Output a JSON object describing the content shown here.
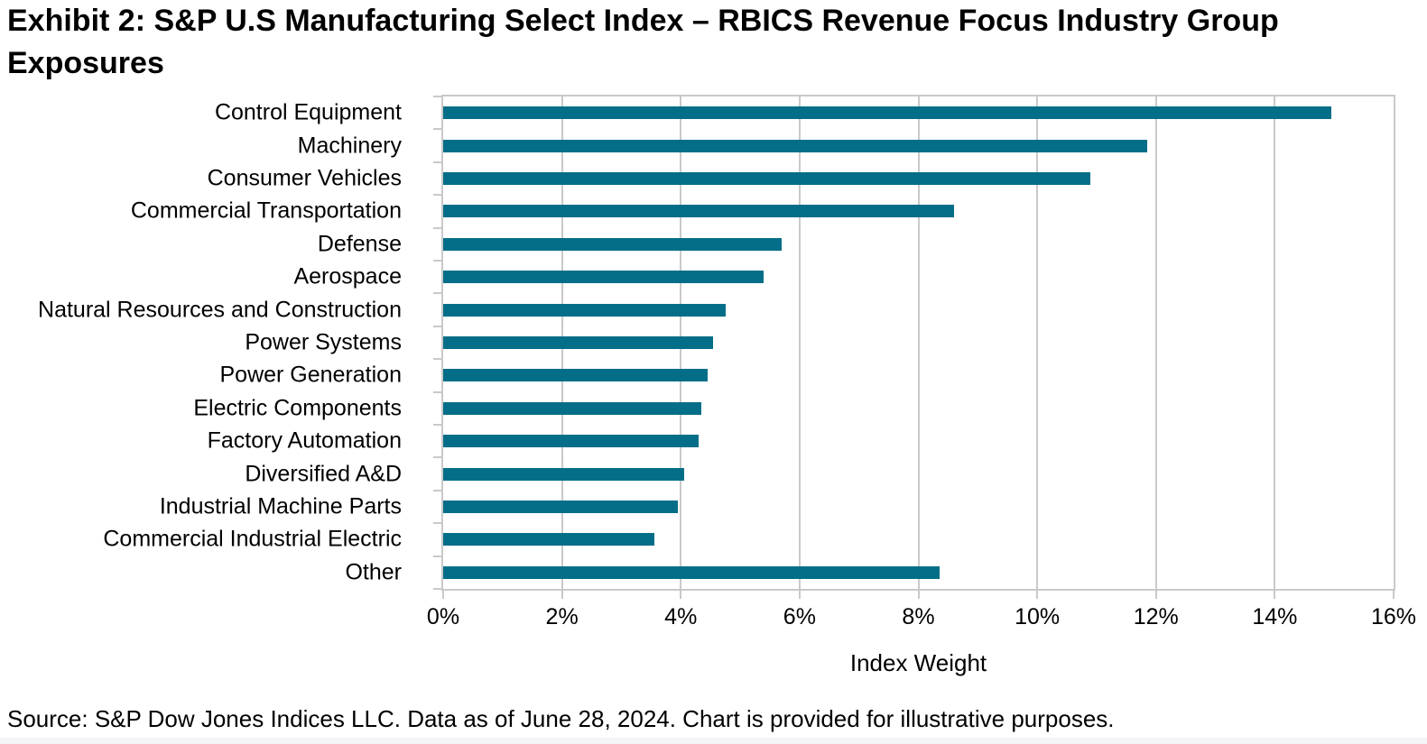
{
  "title": "Exhibit 2: S&P U.S Manufacturing Select Index – RBICS Revenue Focus Industry Group Exposures",
  "source_note": "Source: S&P Dow Jones Indices LLC. Data as of June 28, 2024. Chart is provided for illustrative purposes.",
  "colors": {
    "bar": "#046E88",
    "grid": "#c9c9c9",
    "text": "#000000",
    "background": "#ffffff"
  },
  "chart_data": {
    "type": "bar",
    "orientation": "horizontal",
    "title": "Exhibit 2: S&P U.S Manufacturing Select Index – RBICS Revenue Focus Industry Group Exposures",
    "categories": [
      "Control Equipment",
      "Machinery",
      "Consumer Vehicles",
      "Commercial Transportation",
      "Defense",
      "Aerospace",
      "Natural Resources and Construction",
      "Power Systems",
      "Power Generation",
      "Electric Components",
      "Factory Automation",
      "Diversified A&D",
      "Industrial Machine Parts",
      "Commercial Industrial Electric",
      "Other"
    ],
    "values": [
      14.95,
      11.85,
      10.9,
      8.6,
      5.7,
      5.4,
      4.75,
      4.55,
      4.45,
      4.35,
      4.3,
      4.05,
      3.95,
      3.55,
      8.35
    ],
    "xlabel": "Index Weight",
    "ylabel": "",
    "xlim": [
      0,
      16
    ],
    "xticks": [
      "0%",
      "2%",
      "4%",
      "6%",
      "8%",
      "10%",
      "12%",
      "14%",
      "16%"
    ],
    "xtick_values": [
      0,
      2,
      4,
      6,
      8,
      10,
      12,
      14,
      16
    ],
    "grid": true,
    "legend": false
  }
}
